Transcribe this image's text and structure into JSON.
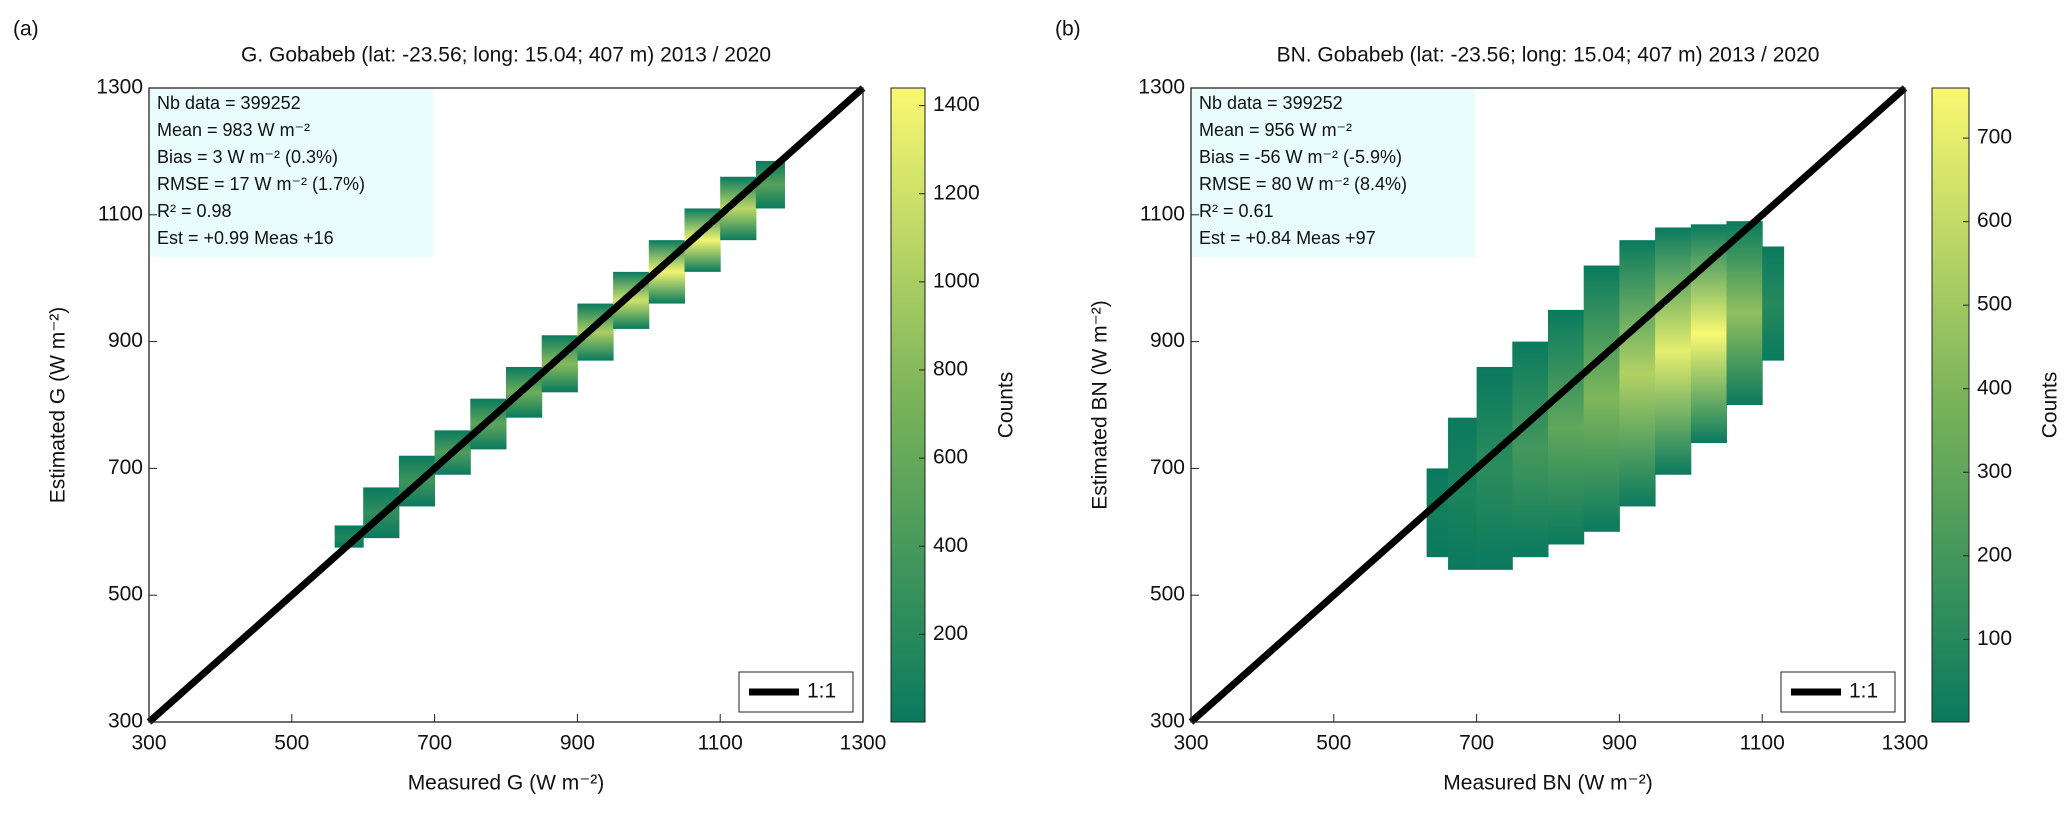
{
  "chart_data": [
    {
      "type": "density",
      "panel_label": "(a)",
      "title": "G. Gobabeb (lat: -23.56; long: 15.04; 407 m) 2013 / 2020",
      "x_label": "Measured G (W m⁻²)",
      "y_label": "Estimated G (W m⁻²)",
      "stats": [
        "Nb data = 399252",
        "Mean    = 983 W m⁻²",
        "Bias     = 3  W m⁻² (0.3%)",
        "RMSE = 17   W m⁻² (1.7%)",
        "R²        =  0.98",
        "Est  = +0.99 Meas +16"
      ],
      "xlim": [
        300,
        1300
      ],
      "ylim": [
        300,
        1300
      ],
      "xticks": [
        300,
        500,
        700,
        900,
        1100,
        1300
      ],
      "yticks": [
        300,
        500,
        700,
        900,
        1100,
        1300
      ],
      "bins": [
        560,
        600,
        650,
        700,
        750,
        800,
        850,
        900,
        950,
        1000,
        1050,
        1100,
        1150,
        1190
      ],
      "y_low": [
        575,
        590,
        640,
        690,
        730,
        780,
        820,
        870,
        920,
        960,
        1010,
        1060,
        1110
      ],
      "y_high": [
        610,
        670,
        720,
        760,
        810,
        860,
        910,
        960,
        1010,
        1060,
        1110,
        1160,
        1185
      ],
      "peak_counts": [
        150,
        250,
        350,
        450,
        550,
        650,
        800,
        1000,
        1200,
        1400,
        1400,
        1100,
        500
      ],
      "ref_line": {
        "name": "1:1",
        "x": [
          300,
          1300
        ],
        "y": [
          300,
          1300
        ],
        "color": "#000000"
      },
      "colorbar_label": "Counts",
      "clim": [
        1,
        1440
      ],
      "cticks": [
        200,
        400,
        600,
        800,
        1000,
        1200,
        1400
      ]
    },
    {
      "type": "density",
      "panel_label": "(b)",
      "title": "BN. Gobabeb (lat: -23.56; long: 15.04; 407 m) 2013 / 2020",
      "x_label": "Measured BN (W m⁻²)",
      "y_label": "Estimated BN (W m⁻²)",
      "stats": [
        "Nb data = 399252",
        "Mean    = 956 W m⁻²",
        "Bias     = -56  W m⁻² (-5.9%)",
        "RMSE = 80   W m⁻² (8.4%)",
        "R²        =  0.61",
        "Est  = +0.84 Meas +97"
      ],
      "xlim": [
        300,
        1300
      ],
      "ylim": [
        300,
        1300
      ],
      "xticks": [
        300,
        500,
        700,
        900,
        1100,
        1300
      ],
      "yticks": [
        300,
        500,
        700,
        900,
        1100,
        1300
      ],
      "bins": [
        630,
        660,
        700,
        750,
        800,
        850,
        900,
        950,
        1000,
        1050,
        1100,
        1130
      ],
      "y_low": [
        560,
        540,
        540,
        560,
        580,
        600,
        640,
        690,
        740,
        800,
        870
      ],
      "y_high": [
        700,
        780,
        860,
        900,
        950,
        1020,
        1060,
        1080,
        1085,
        1090,
        1050
      ],
      "peak_counts": [
        30,
        60,
        120,
        200,
        300,
        400,
        550,
        700,
        760,
        450,
        100
      ],
      "ref_line": {
        "name": "1:1",
        "x": [
          300,
          1300
        ],
        "y": [
          300,
          1300
        ],
        "color": "#000000"
      },
      "colorbar_label": "Counts",
      "clim": [
        1,
        760
      ],
      "cticks": [
        100,
        200,
        300,
        400,
        500,
        600,
        700
      ]
    }
  ]
}
